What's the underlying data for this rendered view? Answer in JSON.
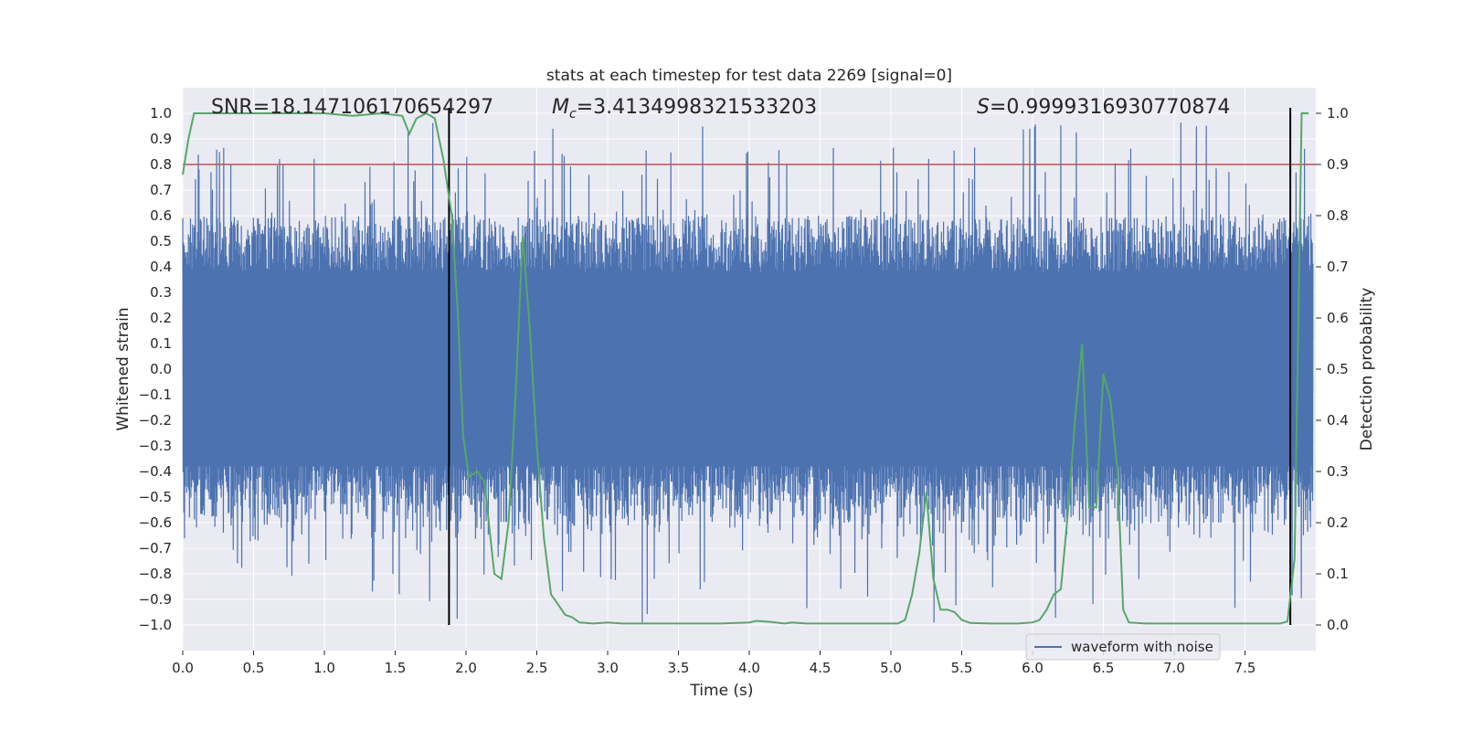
{
  "chart_data": {
    "type": "line",
    "title": "stats at each timestep for test data 2269 [signal=0]",
    "xlabel": "Time (s)",
    "ylabel_left": "Whitened strain",
    "ylabel_right": "Detection probability",
    "xlim": [
      0.0,
      8.0
    ],
    "ylim_left": [
      -1.1,
      1.1
    ],
    "ylim_right": [
      -0.05,
      1.05
    ],
    "x_ticks": [
      "0.0",
      "0.5",
      "1.0",
      "1.5",
      "2.0",
      "2.5",
      "3.0",
      "3.5",
      "4.0",
      "4.5",
      "5.0",
      "5.5",
      "6.0",
      "6.5",
      "7.0",
      "7.5"
    ],
    "y_ticks_left": [
      "1.0",
      "0.9",
      "0.8",
      "0.7",
      "0.6",
      "0.5",
      "0.4",
      "0.3",
      "0.2",
      "0.1",
      "0.0",
      "-0.1",
      "-0.2",
      "-0.3",
      "-0.4",
      "-0.5",
      "-0.6",
      "-0.7",
      "-0.8",
      "-0.9",
      "-1.0"
    ],
    "y_ticks_right": [
      "1.0",
      "0.9",
      "0.8",
      "0.7",
      "0.6",
      "0.5",
      "0.4",
      "0.3",
      "0.2",
      "0.1",
      "0.0"
    ],
    "annotations": {
      "snr": "SNR=18.147106170654297",
      "mc_symbol": "M",
      "mc_sub": "c",
      "mc_value": "=3.4134998321533203",
      "s_symbol": "S",
      "s_value": "=0.9999316930770874"
    },
    "threshold_probability": 0.9,
    "vertical_lines_time": [
      1.88,
      7.82
    ],
    "legend": {
      "label": "waveform with noise",
      "position": "lower-right"
    },
    "series": [
      {
        "name": "waveform with noise",
        "axis": "left",
        "color": "#4c72b0",
        "envelope": {
          "core_abs": 0.38,
          "typical_max": 0.6,
          "peak_max": 0.97,
          "peak_min": -0.99
        }
      },
      {
        "name": "Detection probability",
        "axis": "right",
        "color": "#55a868",
        "x": [
          0.0,
          0.04,
          0.08,
          0.2,
          0.5,
          0.8,
          1.0,
          1.2,
          1.4,
          1.55,
          1.6,
          1.65,
          1.72,
          1.78,
          1.84,
          1.9,
          1.94,
          1.98,
          2.02,
          2.08,
          2.13,
          2.2,
          2.25,
          2.3,
          2.35,
          2.4,
          2.45,
          2.5,
          2.55,
          2.6,
          2.65,
          2.7,
          2.75,
          2.8,
          2.9,
          3.0,
          3.1,
          3.3,
          3.5,
          3.8,
          4.0,
          4.05,
          4.15,
          4.25,
          4.3,
          4.4,
          4.5,
          4.7,
          4.9,
          5.05,
          5.1,
          5.15,
          5.2,
          5.25,
          5.3,
          5.35,
          5.4,
          5.45,
          5.5,
          5.56,
          5.7,
          5.9,
          6.0,
          6.05,
          6.1,
          6.15,
          6.2,
          6.25,
          6.3,
          6.35,
          6.4,
          6.45,
          6.5,
          6.55,
          6.6,
          6.64,
          6.68,
          6.8,
          7.0,
          7.2,
          7.4,
          7.6,
          7.75,
          7.8,
          7.85,
          7.9,
          7.95
        ],
        "values": [
          0.88,
          0.95,
          1.0,
          1.0,
          1.0,
          1.0,
          1.0,
          0.995,
          1.0,
          0.995,
          0.96,
          0.99,
          1.0,
          0.99,
          0.91,
          0.8,
          0.62,
          0.37,
          0.29,
          0.3,
          0.28,
          0.1,
          0.09,
          0.2,
          0.45,
          0.76,
          0.58,
          0.35,
          0.17,
          0.06,
          0.04,
          0.02,
          0.015,
          0.005,
          0.003,
          0.005,
          0.003,
          0.003,
          0.003,
          0.003,
          0.005,
          0.008,
          0.006,
          0.003,
          0.005,
          0.003,
          0.003,
          0.003,
          0.003,
          0.003,
          0.01,
          0.06,
          0.14,
          0.26,
          0.09,
          0.03,
          0.03,
          0.025,
          0.01,
          0.004,
          0.003,
          0.003,
          0.005,
          0.01,
          0.03,
          0.06,
          0.07,
          0.22,
          0.4,
          0.55,
          0.23,
          0.23,
          0.49,
          0.44,
          0.3,
          0.03,
          0.005,
          0.003,
          0.003,
          0.003,
          0.003,
          0.003,
          0.003,
          0.007,
          0.13,
          1.0,
          1.0
        ]
      }
    ]
  }
}
